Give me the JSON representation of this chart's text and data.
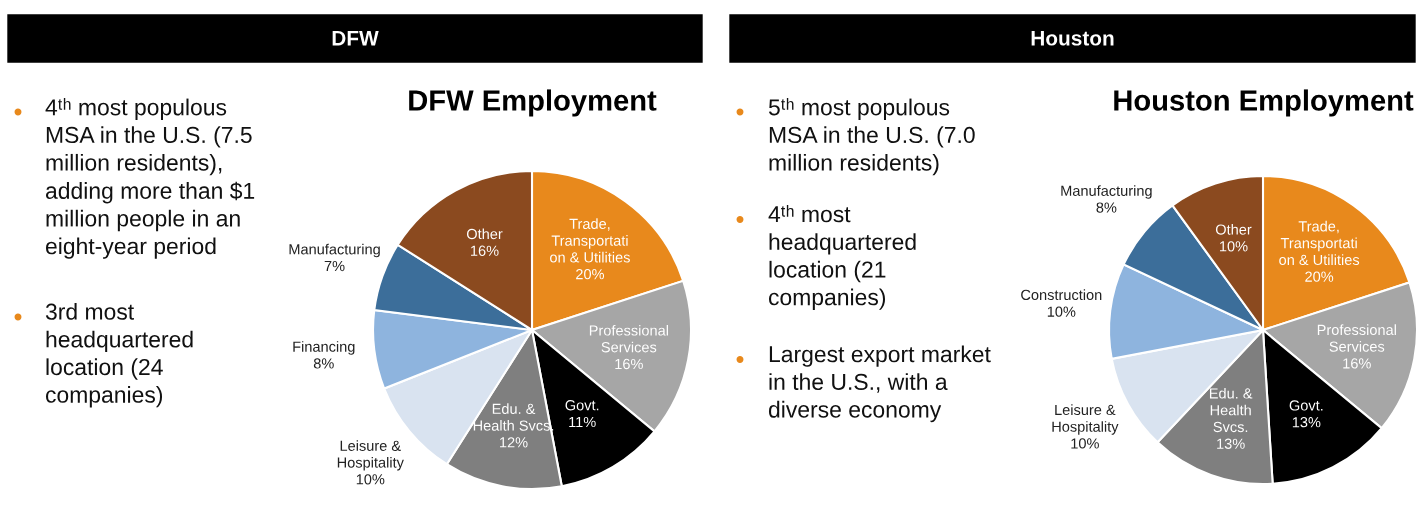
{
  "chart_data": [
    {
      "type": "other",
      "title": "DFW",
      "annotations": [
        "4ᵗʰ most populous\nMSA in the U.S. (7.5\nmillion residents),\nadding more than $1\nmillion people in an\neight-year period",
        "3rd most\nheadquartered\nlocation (24\ncompanies)"
      ]
    },
    {
      "type": "pie",
      "title": "DFW Employment",
      "categories": [
        "Trade,\nTransportati\non & Utilities",
        "Professional\nServices",
        "Govt.",
        "Edu. &\nHealth Svcs.",
        "Leisure &\nHospitality",
        "Financing",
        "Manufacturing",
        "Other"
      ],
      "values": [
        20,
        16,
        11,
        12,
        10,
        8,
        7,
        16
      ],
      "value_labels": [
        "20%",
        "16%",
        "11%",
        "12%",
        "10%",
        "8%",
        "7%",
        "16%"
      ],
      "colors": [
        "#e8891c",
        "#a6a6a6",
        "#000000",
        "#7f7f7f",
        "#d9e3f0",
        "#8eb4de",
        "#3c6e9a",
        "#8b4a1f"
      ]
    },
    {
      "type": "other",
      "title": "Houston",
      "annotations": [
        "5ᵗʰ most populous\nMSA in the U.S. (7.0\nmillion residents)",
        "4ᵗʰ most\nheadquartered\nlocation (21\ncompanies)",
        "Largest export market\nin the U.S., with a\ndiverse economy"
      ]
    },
    {
      "type": "pie",
      "title": "Houston Employment",
      "categories": [
        "Trade,\nTransportati\non & Utilities",
        "Professional\nServices",
        "Govt.",
        "Edu. &\nHealth\nSvcs.",
        "Leisure &\nHospitality",
        "Construction",
        "Manufacturing",
        "Other"
      ],
      "values": [
        20,
        16,
        13,
        13,
        10,
        10,
        8,
        10
      ],
      "value_labels": [
        "20%",
        "16%",
        "13%",
        "13%",
        "10%",
        "10%",
        "8%",
        "10%"
      ],
      "colors": [
        "#e8891c",
        "#a6a6a6",
        "#000000",
        "#7f7f7f",
        "#d9e3f0",
        "#8eb4de",
        "#3c6e9a",
        "#8b4a1f"
      ]
    }
  ]
}
